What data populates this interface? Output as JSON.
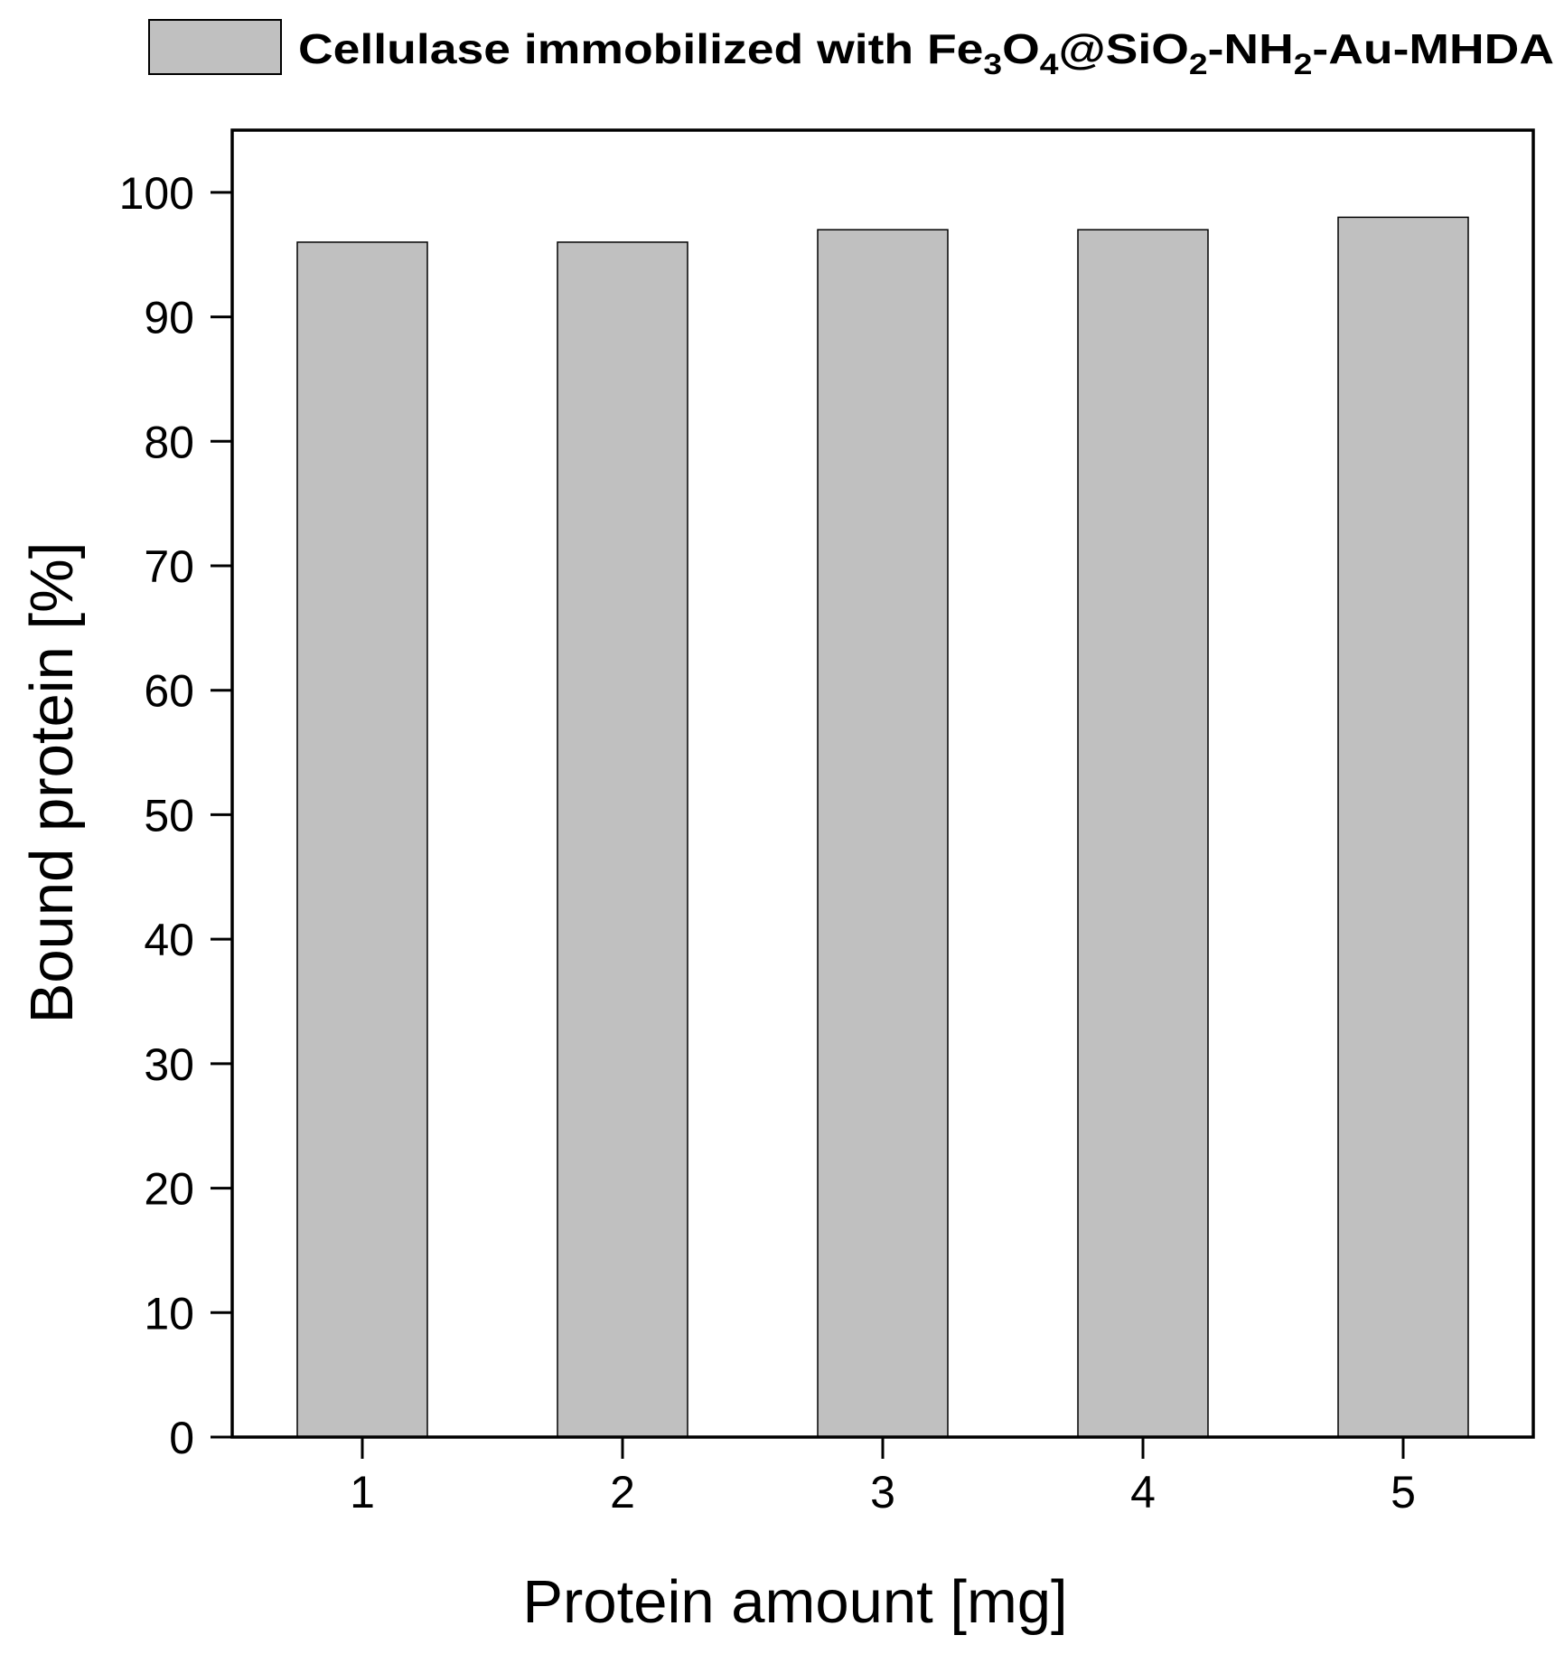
{
  "chart_data": {
    "type": "bar",
    "xlabel": "Protein amount [mg]",
    "ylabel": "Bound protein [%]",
    "categories": [
      "1",
      "2",
      "3",
      "4",
      "5"
    ],
    "series": [
      {
        "name": "Cellulase immobilized with Fe3O4@SiO2-NH2-Au-MHDA",
        "color": "#c0c0c0",
        "values": [
          96,
          96,
          97,
          97,
          98
        ]
      }
    ],
    "ylim": [
      0,
      105
    ],
    "yticks": [
      0,
      10,
      20,
      30,
      40,
      50,
      60,
      70,
      80,
      90,
      100
    ],
    "grid": false,
    "legend": "top"
  }
}
